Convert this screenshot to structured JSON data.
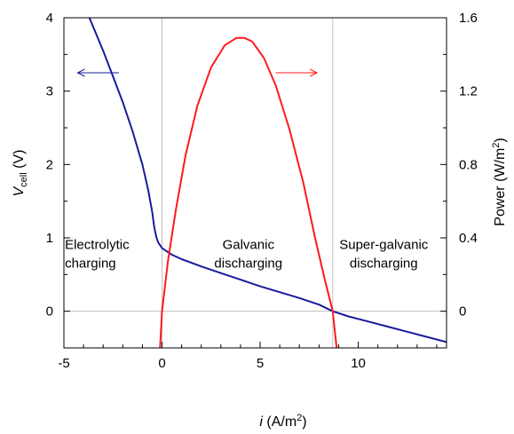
{
  "chart_data": {
    "type": "line",
    "xlabel": {
      "main": "i",
      "unit": " (A/m",
      "sup": "2",
      "close": ")"
    },
    "ylabel_left": {
      "main": "V",
      "sub": "cell",
      "unit": " (V)"
    },
    "ylabel_right": {
      "main": "Power (W/m",
      "sup": "2",
      "close": ")"
    },
    "xlim": [
      -5,
      14.5
    ],
    "ylim_left": [
      -0.5,
      4
    ],
    "ylim_right": [
      -0.2,
      1.6
    ],
    "x_ticks": [
      -5,
      0,
      5,
      10
    ],
    "x_tick_labels": [
      "-5",
      "0",
      "5",
      "10"
    ],
    "y_left_ticks": [
      0,
      1,
      2,
      3,
      4
    ],
    "y_left_tick_labels": [
      "0",
      "1",
      "2",
      "3",
      "4"
    ],
    "y_right_ticks": [
      0,
      0.4,
      0.8,
      1.2,
      1.6
    ],
    "y_right_tick_labels": [
      "0",
      "0.4",
      "0.8",
      "1.2",
      "1.6"
    ],
    "vertical_gridlines_x": [
      0,
      8.7
    ],
    "horizontal_gridline_y": 0,
    "series": [
      {
        "axis": "left",
        "color": "#1a1a9c",
        "x": [
          -3.7,
          -3.0,
          -2.5,
          -2.0,
          -1.5,
          -1.0,
          -0.7,
          -0.5,
          -0.4,
          -0.3,
          -0.2,
          0.0,
          0.5,
          1.0,
          2.0,
          3.0,
          4.0,
          5.0,
          6.0,
          7.0,
          8.0,
          8.7,
          9.5,
          10.5,
          11.5,
          12.5,
          13.5,
          14.5
        ],
        "y": [
          4.0,
          3.55,
          3.2,
          2.85,
          2.45,
          2.0,
          1.65,
          1.35,
          1.15,
          1.02,
          0.94,
          0.86,
          0.77,
          0.71,
          0.61,
          0.52,
          0.43,
          0.34,
          0.26,
          0.18,
          0.09,
          0.0,
          -0.07,
          -0.14,
          -0.21,
          -0.28,
          -0.35,
          -0.42
        ]
      },
      {
        "axis": "right",
        "color": "#ff1a1a",
        "x": [
          -0.1,
          0.0,
          0.3,
          0.7,
          1.2,
          1.8,
          2.5,
          3.2,
          3.8,
          4.2,
          4.6,
          5.2,
          5.8,
          6.5,
          7.2,
          7.8,
          8.3,
          8.7,
          8.9
        ],
        "y": [
          -0.2,
          0.0,
          0.27,
          0.55,
          0.85,
          1.12,
          1.33,
          1.45,
          1.49,
          1.49,
          1.47,
          1.38,
          1.23,
          0.99,
          0.7,
          0.4,
          0.17,
          0.0,
          -0.2
        ]
      }
    ],
    "annotations": [
      {
        "id": "electrolytic",
        "lines": [
          "Electrolytic",
          "charging"
        ],
        "x": -4.95,
        "y": 0.85,
        "anchor": "start"
      },
      {
        "id": "galvanic",
        "lines": [
          "Galvanic",
          "discharging"
        ],
        "x": 4.4,
        "y": 0.85,
        "anchor": "middle"
      },
      {
        "id": "super-galvanic",
        "lines": [
          "Super-galvanic",
          "discharging"
        ],
        "x": 11.3,
        "y": 0.85,
        "anchor": "middle"
      }
    ],
    "arrows": [
      {
        "id": "left-arrow",
        "axis": "left",
        "color": "#1a1a9c",
        "from_x": -2.2,
        "to_x": -4.3,
        "y": 3.25
      },
      {
        "id": "right-arrow",
        "axis": "left",
        "color": "#ff1a1a",
        "from_x": 5.8,
        "to_x": 7.9,
        "y": 3.25
      }
    ]
  }
}
